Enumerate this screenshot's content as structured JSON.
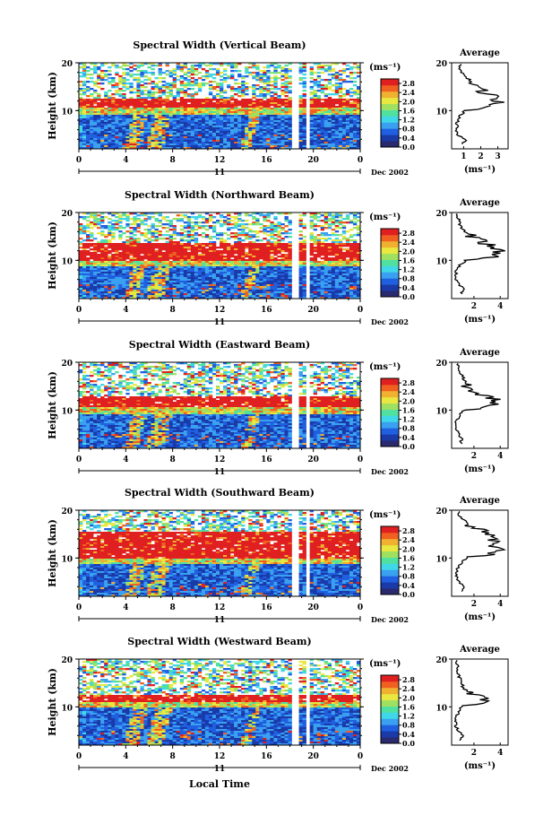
{
  "figure": {
    "xlabel_bottom": "Local Time",
    "cbar_unit": "(ms⁻¹)",
    "avg_title": "Average",
    "avg_xlabel": "(ms⁻¹)"
  },
  "colors": {
    "colormap": [
      "#2a2a6e",
      "#1a3aa8",
      "#2060e0",
      "#3aa0f0",
      "#40d8e8",
      "#50e0a0",
      "#a0e060",
      "#e8e840",
      "#f0b030",
      "#f06020",
      "#e02020"
    ]
  },
  "chart_data": [
    {
      "type": "heatmap",
      "title": "Spectral Width (Vertical Beam)",
      "ylabel": "Height (km)",
      "x_ticks": [
        "0",
        "4",
        "8",
        "12",
        "16",
        "20",
        "0"
      ],
      "xlim": [
        0,
        24
      ],
      "y_ticks": [
        "20",
        "10"
      ],
      "ylim": [
        2,
        20
      ],
      "day_label": "11",
      "date_label": "Dec 2002",
      "colorbar_ticks": [
        "2.8",
        "2.4",
        "2.0",
        "1.6",
        "1.2",
        "0.8",
        "0.4",
        "0.0"
      ],
      "colorbar_range": [
        0,
        3.0
      ],
      "data_gaps_hours": [
        [
          18.2,
          18.7
        ],
        [
          19.5,
          19.8
        ]
      ],
      "red_band_km": [
        10.5,
        12.5
      ],
      "average_profile": {
        "x_ticks": [
          "1",
          "2",
          "3"
        ],
        "xlim": [
          0.3,
          3.6
        ],
        "ylim": [
          2,
          20
        ],
        "height_km": [
          3,
          4,
          5,
          6,
          7,
          8,
          9,
          10,
          11,
          12,
          13,
          14,
          15,
          16,
          17,
          18,
          19,
          20
        ],
        "width_ms": [
          0.9,
          1.1,
          0.7,
          0.6,
          0.6,
          0.7,
          0.8,
          1.1,
          2.9,
          3.0,
          2.7,
          2.3,
          2.2,
          1.4,
          1.2,
          0.9,
          0.8,
          0.7
        ]
      }
    },
    {
      "type": "heatmap",
      "title": "Spectral Width (Northward Beam)",
      "ylabel": "Height (km)",
      "x_ticks": [
        "0",
        "4",
        "8",
        "12",
        "16",
        "20",
        "0"
      ],
      "xlim": [
        0,
        24
      ],
      "y_ticks": [
        "20",
        "10"
      ],
      "ylim": [
        2,
        20
      ],
      "day_label": "11",
      "date_label": "Dec 2002",
      "colorbar_ticks": [
        "2.8",
        "2.4",
        "2.0",
        "1.6",
        "1.2",
        "0.8",
        "0.4",
        "0.0"
      ],
      "colorbar_range": [
        0,
        3.0
      ],
      "data_gaps_hours": [
        [
          18.2,
          18.7
        ],
        [
          19.5,
          19.8
        ]
      ],
      "red_band_km": [
        10.0,
        13.5
      ],
      "average_profile": {
        "x_ticks": [
          "2",
          "4"
        ],
        "xlim": [
          0.3,
          4.6
        ],
        "ylim": [
          2,
          20
        ],
        "height_km": [
          3,
          4,
          5,
          6,
          7,
          8,
          9,
          10,
          11,
          12,
          13,
          14,
          15,
          16,
          17,
          18,
          19,
          20
        ],
        "width_ms": [
          1.0,
          1.2,
          0.8,
          0.6,
          0.6,
          0.7,
          0.9,
          1.4,
          4.0,
          3.8,
          3.2,
          2.6,
          1.7,
          1.3,
          1.0,
          0.9,
          0.8,
          0.7
        ]
      }
    },
    {
      "type": "heatmap",
      "title": "Spectral Width (Eastward Beam)",
      "ylabel": "Height (km)",
      "x_ticks": [
        "0",
        "4",
        "8",
        "12",
        "16",
        "20",
        "0"
      ],
      "xlim": [
        0,
        24
      ],
      "y_ticks": [
        "20",
        "10"
      ],
      "ylim": [
        2,
        20
      ],
      "day_label": "11",
      "date_label": "Dec 2002",
      "colorbar_ticks": [
        "2.8",
        "2.4",
        "2.0",
        "1.6",
        "1.2",
        "0.8",
        "0.4",
        "0.0"
      ],
      "colorbar_range": [
        0,
        3.0
      ],
      "data_gaps_hours": [
        [
          18.2,
          18.7
        ],
        [
          19.5,
          19.8
        ]
      ],
      "red_band_km": [
        10.5,
        13.0
      ],
      "average_profile": {
        "x_ticks": [
          "2",
          "4"
        ],
        "xlim": [
          0.3,
          4.6
        ],
        "ylim": [
          2,
          20
        ],
        "height_km": [
          3,
          4,
          5,
          6,
          7,
          8,
          9,
          10,
          11,
          12,
          13,
          14,
          15,
          16,
          17,
          18,
          19,
          20
        ],
        "width_ms": [
          1.0,
          1.1,
          0.8,
          0.6,
          0.6,
          0.7,
          0.9,
          1.3,
          3.7,
          3.9,
          2.8,
          2.1,
          1.6,
          1.3,
          1.1,
          0.9,
          0.8,
          0.7
        ]
      }
    },
    {
      "type": "heatmap",
      "title": "Spectral Width (Southward Beam)",
      "ylabel": "Height (km)",
      "x_ticks": [
        "0",
        "4",
        "8",
        "12",
        "16",
        "20",
        "0"
      ],
      "xlim": [
        0,
        24
      ],
      "y_ticks": [
        "20",
        "10"
      ],
      "ylim": [
        2,
        20
      ],
      "day_label": "11",
      "date_label": "Dec 2002",
      "colorbar_ticks": [
        "2.8",
        "2.4",
        "2.0",
        "1.6",
        "1.2",
        "0.8",
        "0.4",
        "0.0"
      ],
      "colorbar_range": [
        0,
        3.0
      ],
      "data_gaps_hours": [
        [
          18.2,
          18.7
        ],
        [
          19.5,
          19.8
        ]
      ],
      "red_band_km": [
        10.0,
        15.5
      ],
      "average_profile": {
        "x_ticks": [
          "2",
          "4"
        ],
        "xlim": [
          0.3,
          4.6
        ],
        "ylim": [
          2,
          20
        ],
        "height_km": [
          3,
          4,
          5,
          6,
          7,
          8,
          9,
          10,
          11,
          12,
          13,
          14,
          15,
          16,
          17,
          18,
          19,
          20
        ],
        "width_ms": [
          1.1,
          1.3,
          0.9,
          0.7,
          0.7,
          0.8,
          1.0,
          1.5,
          3.6,
          3.9,
          3.4,
          3.7,
          3.1,
          2.4,
          1.6,
          1.2,
          0.9,
          0.8
        ]
      }
    },
    {
      "type": "heatmap",
      "title": "Spectral Width (Westward Beam)",
      "ylabel": "Height (km)",
      "x_ticks": [
        "0",
        "4",
        "8",
        "12",
        "16",
        "20",
        "0"
      ],
      "xlim": [
        0,
        24
      ],
      "y_ticks": [
        "20",
        "10"
      ],
      "ylim": [
        2,
        20
      ],
      "day_label": "11",
      "date_label": "Dec 2002",
      "colorbar_ticks": [
        "2.8",
        "2.4",
        "2.0",
        "1.6",
        "1.2",
        "0.8",
        "0.4",
        "0.0"
      ],
      "colorbar_range": [
        0,
        3.0
      ],
      "data_gaps_hours": [
        [
          18.2,
          18.7
        ],
        [
          19.5,
          19.8
        ]
      ],
      "red_band_km": [
        11.0,
        12.5
      ],
      "average_profile": {
        "x_ticks": [
          "2",
          "4"
        ],
        "xlim": [
          0.3,
          4.6
        ],
        "ylim": [
          2,
          20
        ],
        "height_km": [
          3,
          4,
          5,
          6,
          7,
          8,
          9,
          10,
          11,
          12,
          13,
          14,
          15,
          16,
          17,
          18,
          19,
          20
        ],
        "width_ms": [
          1.0,
          1.2,
          0.8,
          0.6,
          0.6,
          0.7,
          0.8,
          1.0,
          3.5,
          2.6,
          1.6,
          1.2,
          1.0,
          0.9,
          0.8,
          0.8,
          0.7,
          0.7
        ]
      }
    }
  ]
}
